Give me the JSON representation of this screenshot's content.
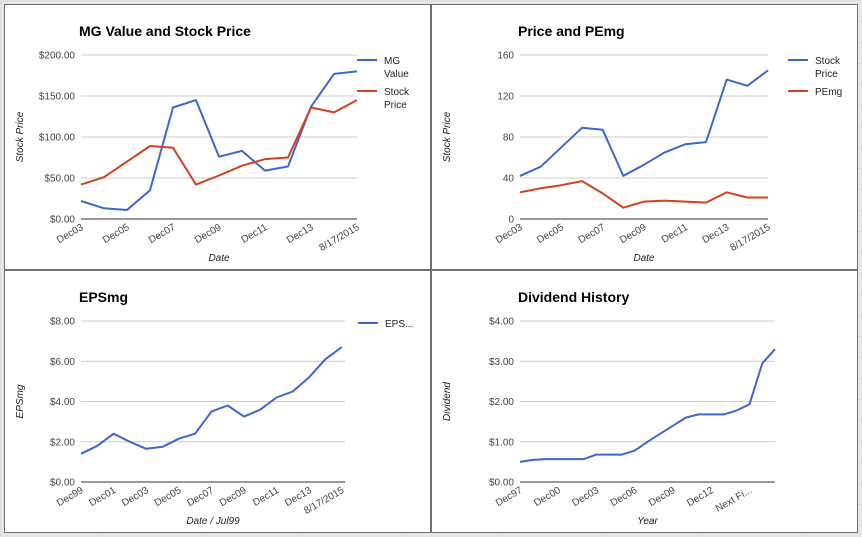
{
  "colors": {
    "blue": "#3d67cf",
    "red": "#d2401f",
    "grid": "#cccccc",
    "axis": "#333333"
  },
  "chart_data": [
    {
      "type": "line",
      "title": "MG Value and Stock Price",
      "xlabel": "Date",
      "ylabel": "Stock Price",
      "ylim": [
        0,
        200
      ],
      "yticks": [
        "$0.00",
        "$50.00",
        "$100.00",
        "$150.00",
        "$200.00"
      ],
      "xticks": [
        "Dec03",
        "Dec05",
        "Dec07",
        "Dec09",
        "Dec11",
        "Dec13",
        "8/17/2015"
      ],
      "grid": "horizontal",
      "legend_position": "right",
      "series": [
        {
          "name": "MG Value",
          "legend_lines": [
            "MG",
            "Value"
          ],
          "color": "#3d67cf",
          "x": [
            0,
            1,
            2,
            3,
            4,
            5,
            6,
            7,
            8,
            9,
            10,
            11,
            12
          ],
          "values": [
            22,
            13,
            11,
            35,
            136,
            145,
            76,
            83,
            59,
            64,
            137,
            177,
            180
          ]
        },
        {
          "name": "Stock Price",
          "legend_lines": [
            "Stock",
            "Price"
          ],
          "color": "#d2401f",
          "x": [
            0,
            1,
            2,
            3,
            4,
            5,
            6,
            7,
            8,
            9,
            10,
            11,
            12
          ],
          "values": [
            42,
            51,
            70,
            89,
            87,
            42,
            53,
            65,
            73,
            75,
            136,
            130,
            145
          ]
        }
      ],
      "x_positions": [
        0,
        2,
        4,
        6,
        8,
        10,
        12
      ],
      "x_max": 12
    },
    {
      "type": "line",
      "title": "Price and PEmg",
      "xlabel": "Date",
      "ylabel": "Stock Price",
      "ylim": [
        0,
        160
      ],
      "yticks": [
        "0",
        "40",
        "80",
        "120",
        "160"
      ],
      "xticks": [
        "Dec03",
        "Dec05",
        "Dec07",
        "Dec09",
        "Dec11",
        "Dec13",
        "8/17/2015"
      ],
      "grid": "horizontal",
      "legend_position": "right",
      "series": [
        {
          "name": "Stock Price",
          "legend_lines": [
            "Stock",
            "Price"
          ],
          "color": "#3d67cf",
          "x": [
            0,
            1,
            2,
            3,
            4,
            5,
            6,
            7,
            8,
            9,
            10,
            11,
            12
          ],
          "values": [
            42,
            51,
            70,
            89,
            87,
            42,
            53,
            65,
            73,
            75,
            136,
            130,
            145
          ]
        },
        {
          "name": "PEmg",
          "legend_lines": [
            "PEmg"
          ],
          "color": "#d2401f",
          "x": [
            0,
            1,
            2,
            3,
            4,
            5,
            6,
            7,
            8,
            9,
            10,
            11,
            12
          ],
          "values": [
            26,
            30,
            33,
            37,
            25,
            11,
            17,
            18,
            17,
            16,
            26,
            21,
            21
          ]
        }
      ],
      "x_positions": [
        0,
        2,
        4,
        6,
        8,
        10,
        12
      ],
      "x_max": 12
    },
    {
      "type": "line",
      "title": "EPSmg",
      "xlabel": "Date / Jul99",
      "ylabel": "EPSmg",
      "ylim": [
        0,
        8
      ],
      "yticks": [
        "$0.00",
        "$2.00",
        "$4.00",
        "$6.00",
        "$8.00"
      ],
      "xticks": [
        "Dec99",
        "Dec01",
        "Dec03",
        "Dec05",
        "Dec07",
        "Dec09",
        "Dec11",
        "Dec13",
        "8/17/2015"
      ],
      "grid": "horizontal",
      "legend_position": "right",
      "series": [
        {
          "name": "EPS...",
          "legend_lines": [
            "EPS..."
          ],
          "color": "#3d67cf",
          "x": [
            0,
            1,
            2,
            3,
            4,
            5,
            6,
            7,
            8,
            9,
            10,
            11,
            12,
            13,
            14,
            15,
            16
          ],
          "values": [
            1.4,
            1.8,
            2.4,
            2.0,
            1.65,
            1.75,
            2.15,
            2.4,
            3.5,
            3.8,
            3.25,
            3.6,
            4.2,
            4.5,
            5.2,
            6.1,
            6.7
          ]
        }
      ],
      "x_positions": [
        0,
        2,
        4,
        6,
        8,
        10,
        12,
        14,
        16
      ],
      "x_max": 16.2
    },
    {
      "type": "line",
      "title": "Dividend History",
      "xlabel": "Year",
      "ylabel": "Dividend",
      "ylim": [
        0,
        4
      ],
      "yticks": [
        "$0.00",
        "$1.00",
        "$2.00",
        "$3.00",
        "$4.00"
      ],
      "xticks": [
        "Dec97",
        "Dec00",
        "Dec03",
        "Dec06",
        "Dec09",
        "Dec12",
        "Next Fi..."
      ],
      "grid": "horizontal",
      "legend_position": "none",
      "series": [
        {
          "name": "",
          "legend_lines": [],
          "color": "#3d67cf",
          "x": [
            0,
            1,
            2,
            3,
            4,
            5,
            6,
            7,
            8,
            9,
            10,
            11,
            12,
            13,
            14,
            15,
            16,
            17,
            18,
            19,
            20
          ],
          "values": [
            0.5,
            0.55,
            0.57,
            0.57,
            0.57,
            0.57,
            0.68,
            0.68,
            0.68,
            0.78,
            1.0,
            1.2,
            1.4,
            1.6,
            1.68,
            1.68,
            1.68,
            1.78,
            1.93,
            2.95,
            3.3
          ]
        }
      ],
      "x_positions": [
        0,
        3,
        6,
        9,
        12,
        15,
        18
      ],
      "x_max": 20
    }
  ]
}
